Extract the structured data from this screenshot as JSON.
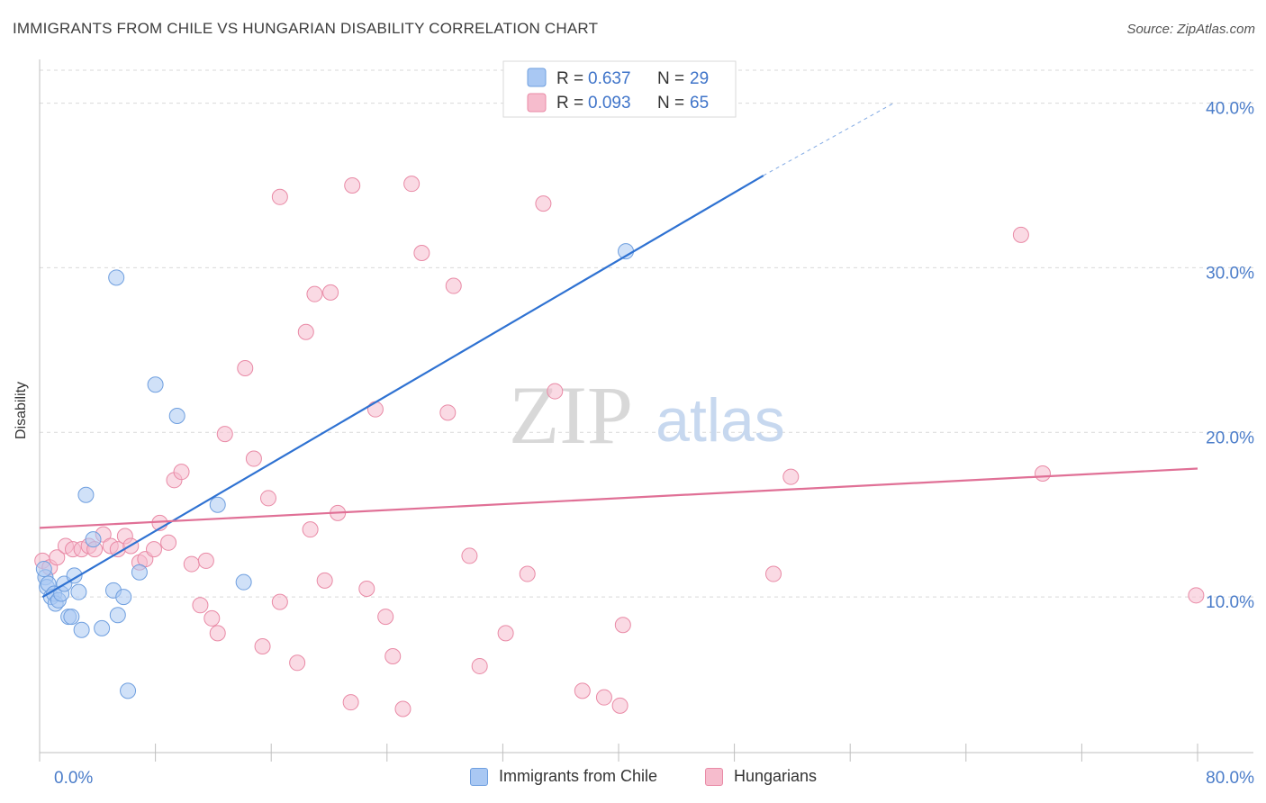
{
  "title": "IMMIGRANTS FROM CHILE VS HUNGARIAN DISABILITY CORRELATION CHART",
  "source": "Source: ZipAtlas.com",
  "watermark": {
    "zip": "ZIP",
    "atlas": "atlas"
  },
  "colors": {
    "blue_fill": "#a9c8f3",
    "blue_stroke": "#6f9fdf",
    "blue_line": "#2f72d2",
    "pink_fill": "#f6bccd",
    "pink_stroke": "#e98aa6",
    "pink_line": "#e07096",
    "grid": "#d9d9d9",
    "tick_text": "#4a7cc9"
  },
  "legend": {
    "rows": [
      {
        "r_label": "R = ",
        "r_value": "0.637",
        "n_label": "N = ",
        "n_value": "29"
      },
      {
        "r_label": "R = ",
        "r_value": "0.093",
        "n_label": "N = ",
        "n_value": "65"
      }
    ]
  },
  "chart_data": {
    "type": "scatter",
    "title": "IMMIGRANTS FROM CHILE VS HUNGARIAN DISABILITY CORRELATION CHART",
    "xlabel": "",
    "ylabel": "Disability",
    "xlim": [
      0,
      80
    ],
    "ylim": [
      0,
      42
    ],
    "x_tick_labels": [
      "0.0%",
      "80.0%"
    ],
    "y_ticks": [
      10,
      20,
      30,
      40
    ],
    "y_tick_labels": [
      "10.0%",
      "20.0%",
      "30.0%",
      "40.0%"
    ],
    "grid": true,
    "legend_position": "top-center",
    "series": [
      {
        "name": "Immigrants from Chile",
        "R": 0.637,
        "N": 29,
        "trend": {
          "x0": 0.2,
          "y0": 10.0,
          "x1": 50.0,
          "y1": 35.6,
          "dashed_to_x": 59.0,
          "dashed_to_y": 40.0
        },
        "points": [
          [
            0.4,
            11.2
          ],
          [
            0.5,
            10.6
          ],
          [
            0.6,
            10.8
          ],
          [
            0.8,
            10.0
          ],
          [
            1.0,
            10.2
          ],
          [
            1.1,
            9.6
          ],
          [
            1.3,
            9.8
          ],
          [
            1.5,
            10.2
          ],
          [
            1.7,
            10.8
          ],
          [
            2.0,
            8.8
          ],
          [
            2.2,
            8.8
          ],
          [
            2.4,
            11.3
          ],
          [
            2.7,
            10.3
          ],
          [
            3.2,
            16.2
          ],
          [
            3.7,
            13.5
          ],
          [
            2.9,
            8.0
          ],
          [
            4.3,
            8.1
          ],
          [
            5.1,
            10.4
          ],
          [
            5.3,
            29.4
          ],
          [
            5.4,
            8.9
          ],
          [
            5.8,
            10.0
          ],
          [
            6.1,
            4.3
          ],
          [
            6.9,
            11.5
          ],
          [
            8.0,
            22.9
          ],
          [
            9.5,
            21.0
          ],
          [
            12.3,
            15.6
          ],
          [
            14.1,
            10.9
          ],
          [
            40.5,
            31.0
          ],
          [
            0.3,
            11.7
          ]
        ]
      },
      {
        "name": "Hungarians",
        "R": 0.093,
        "N": 65,
        "trend": {
          "x0": 0.0,
          "y0": 14.2,
          "x1": 80.0,
          "y1": 17.8
        },
        "points": [
          [
            0.2,
            12.2
          ],
          [
            0.7,
            11.8
          ],
          [
            1.2,
            12.4
          ],
          [
            1.8,
            13.1
          ],
          [
            2.3,
            12.9
          ],
          [
            2.9,
            12.9
          ],
          [
            3.4,
            13.1
          ],
          [
            3.8,
            12.9
          ],
          [
            4.4,
            13.8
          ],
          [
            4.9,
            13.1
          ],
          [
            5.4,
            12.9
          ],
          [
            5.9,
            13.7
          ],
          [
            6.3,
            13.1
          ],
          [
            6.9,
            12.1
          ],
          [
            7.3,
            12.3
          ],
          [
            7.9,
            12.9
          ],
          [
            8.3,
            14.5
          ],
          [
            8.9,
            13.3
          ],
          [
            9.3,
            17.1
          ],
          [
            9.8,
            17.6
          ],
          [
            10.5,
            12.0
          ],
          [
            11.1,
            9.5
          ],
          [
            11.5,
            12.2
          ],
          [
            11.9,
            8.7
          ],
          [
            12.3,
            7.8
          ],
          [
            12.8,
            19.9
          ],
          [
            14.2,
            23.9
          ],
          [
            14.8,
            18.4
          ],
          [
            15.4,
            7.0
          ],
          [
            15.8,
            16.0
          ],
          [
            16.6,
            9.7
          ],
          [
            16.6,
            34.3
          ],
          [
            17.8,
            6.0
          ],
          [
            18.4,
            26.1
          ],
          [
            18.7,
            14.1
          ],
          [
            19.0,
            28.4
          ],
          [
            19.7,
            11.0
          ],
          [
            20.1,
            28.5
          ],
          [
            20.6,
            15.1
          ],
          [
            21.5,
            3.6
          ],
          [
            21.6,
            35.0
          ],
          [
            22.6,
            10.5
          ],
          [
            23.2,
            21.4
          ],
          [
            23.9,
            8.8
          ],
          [
            24.4,
            6.4
          ],
          [
            25.1,
            3.2
          ],
          [
            25.7,
            35.1
          ],
          [
            26.4,
            30.9
          ],
          [
            28.2,
            21.2
          ],
          [
            28.6,
            28.9
          ],
          [
            29.7,
            12.5
          ],
          [
            30.4,
            5.8
          ],
          [
            32.2,
            7.8
          ],
          [
            33.7,
            11.4
          ],
          [
            34.8,
            33.9
          ],
          [
            35.6,
            22.5
          ],
          [
            37.5,
            4.3
          ],
          [
            39.0,
            3.9
          ],
          [
            40.1,
            3.4
          ],
          [
            40.3,
            8.3
          ],
          [
            50.7,
            11.4
          ],
          [
            51.9,
            17.3
          ],
          [
            67.8,
            32.0
          ],
          [
            69.3,
            17.5
          ],
          [
            79.9,
            10.1
          ]
        ]
      }
    ]
  },
  "bottom_legend": [
    {
      "label": "Immigrants from Chile"
    },
    {
      "label": "Hungarians"
    }
  ]
}
